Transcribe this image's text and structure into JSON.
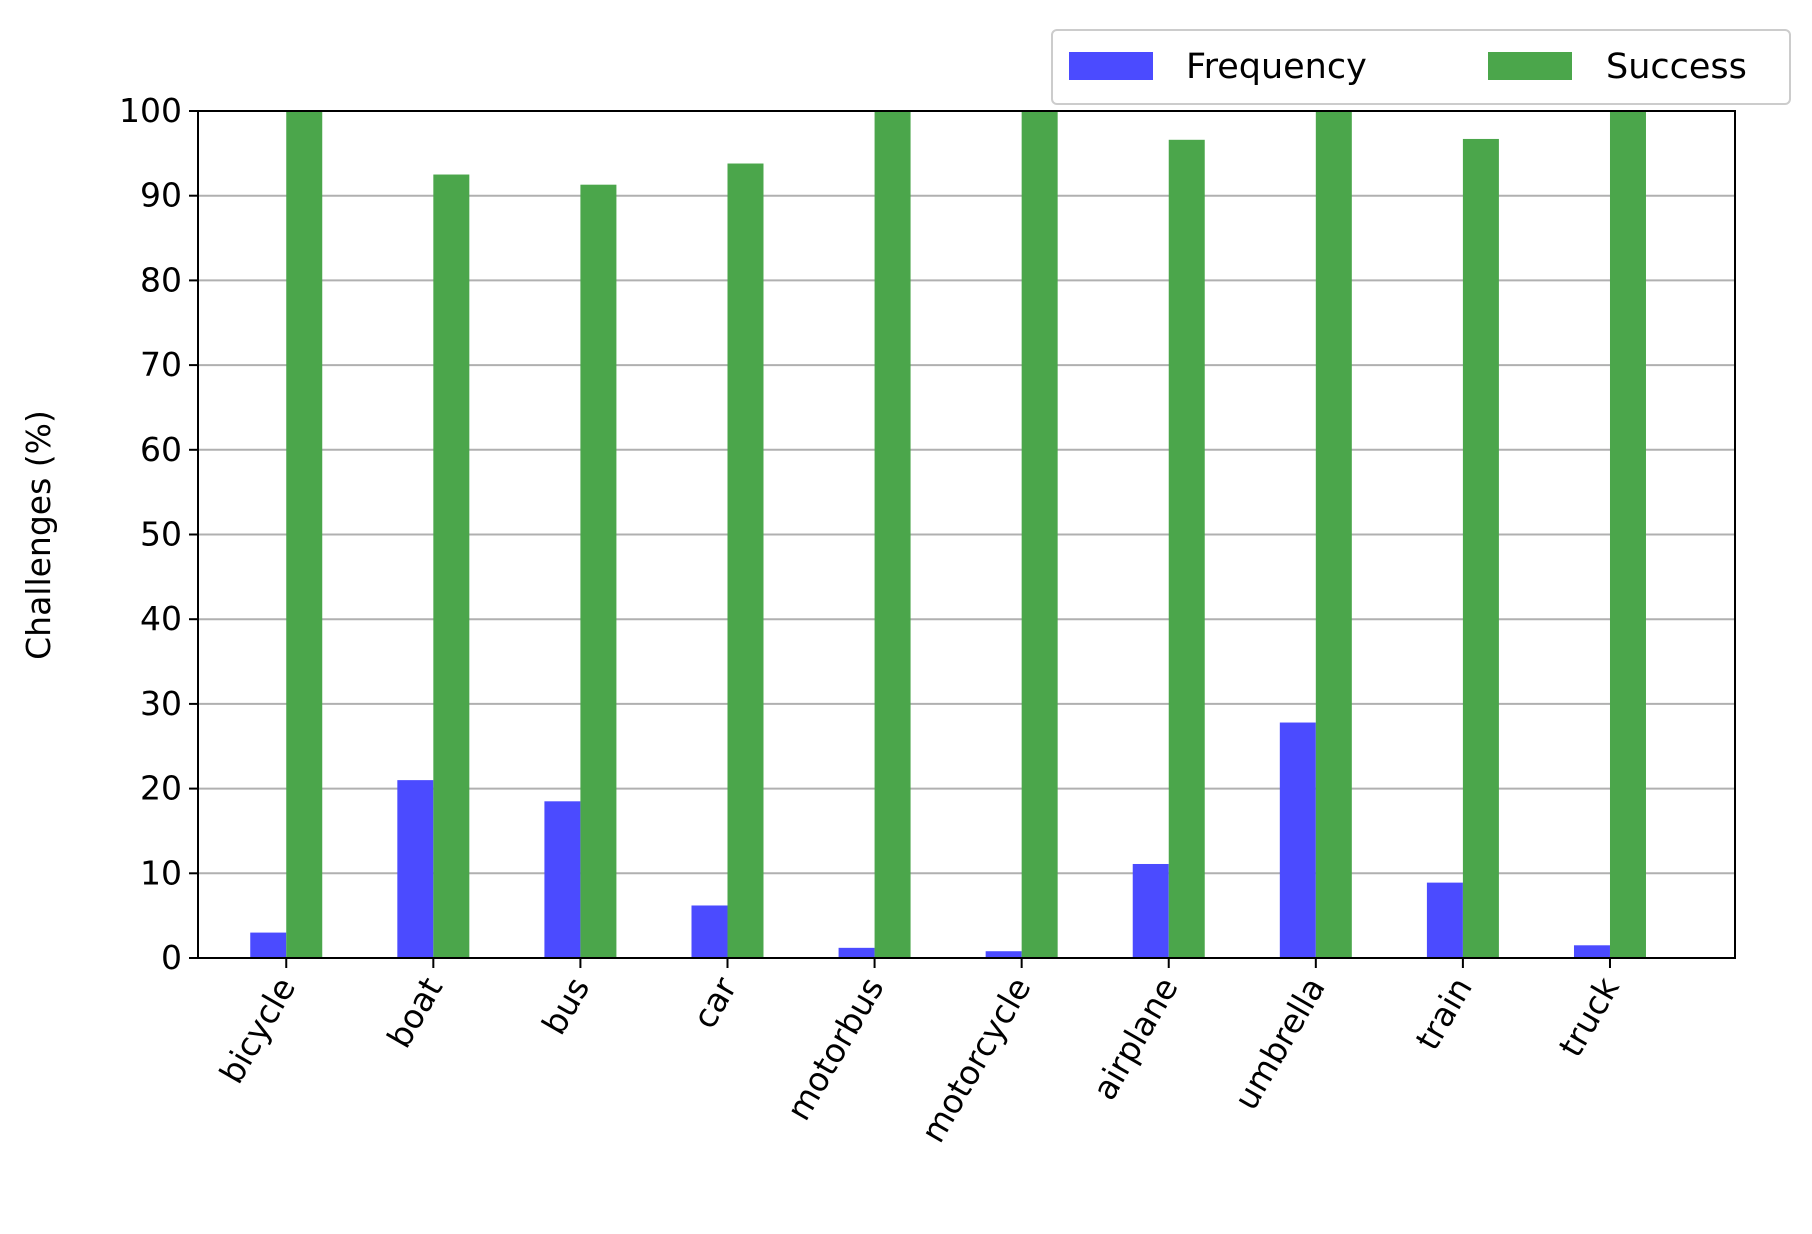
{
  "chart_data": {
    "type": "bar",
    "title": "",
    "xlabel": "",
    "ylabel": "Challenges (%)",
    "ylim": [
      0,
      100
    ],
    "yticks": [
      0,
      10,
      20,
      30,
      40,
      50,
      60,
      70,
      80,
      90,
      100
    ],
    "grid": "y",
    "legend_position": "top-right",
    "categories": [
      "bicycle",
      "boat",
      "bus",
      "car",
      "motorbus",
      "motorcycle",
      "airplane",
      "umbrella",
      "train",
      "truck"
    ],
    "series": [
      {
        "name": "Frequency",
        "color": "#4b4bff",
        "values": [
          3.0,
          21.0,
          18.5,
          6.2,
          1.2,
          0.8,
          11.1,
          27.8,
          8.9,
          1.5
        ]
      },
      {
        "name": "Success",
        "color": "#4ba64b",
        "values": [
          100,
          92.5,
          91.3,
          93.8,
          100,
          100,
          96.6,
          100,
          96.7,
          100
        ]
      }
    ]
  }
}
